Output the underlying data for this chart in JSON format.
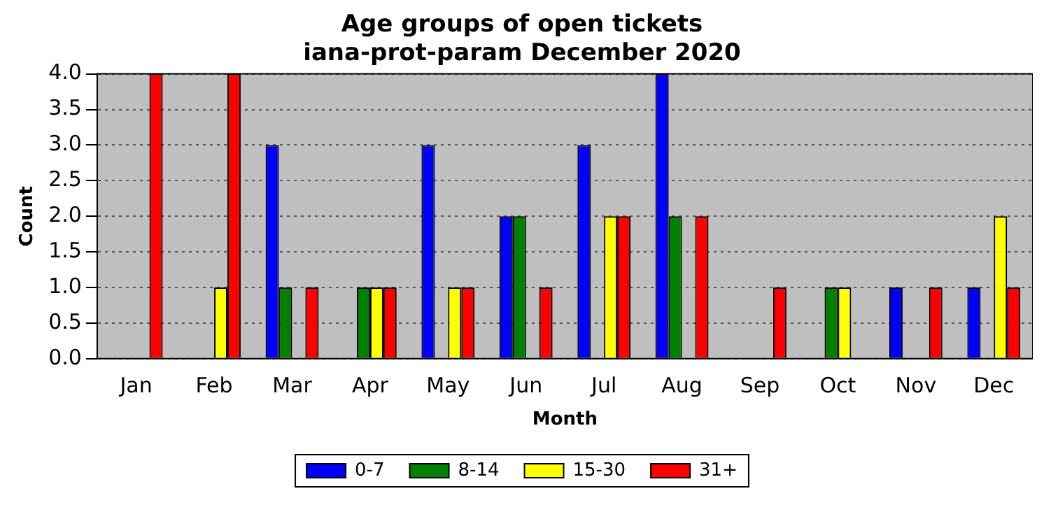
{
  "chart_data": {
    "type": "bar",
    "title": "Age groups of open tickets",
    "subtitle": "iana-prot-param December 2020",
    "xlabel": "Month",
    "ylabel": "Count",
    "categories": [
      "Jan",
      "Feb",
      "Mar",
      "Apr",
      "May",
      "Jun",
      "Jul",
      "Aug",
      "Sep",
      "Oct",
      "Nov",
      "Dec"
    ],
    "series": [
      {
        "name": "0-7",
        "color": "#0000ff",
        "values": [
          0,
          0,
          3,
          0,
          3,
          2,
          3,
          4,
          0,
          0,
          1,
          1
        ]
      },
      {
        "name": "8-14",
        "color": "#008000",
        "values": [
          0,
          0,
          1,
          1,
          0,
          2,
          0,
          2,
          0,
          1,
          0,
          0
        ]
      },
      {
        "name": "15-30",
        "color": "#ffff00",
        "values": [
          0,
          1,
          0,
          1,
          1,
          0,
          2,
          0,
          0,
          1,
          0,
          2
        ]
      },
      {
        "name": "31+",
        "color": "#ff0000",
        "values": [
          4,
          4,
          1,
          1,
          1,
          1,
          2,
          2,
          1,
          0,
          1,
          1
        ]
      }
    ],
    "ylim": [
      0,
      4
    ],
    "yticks": [
      {
        "value": 0,
        "label": "0.0"
      },
      0.5,
      {
        "value": 1,
        "label": "1.0"
      },
      1.5,
      {
        "value": 2,
        "label": "2.0"
      },
      2.5,
      {
        "value": 3,
        "label": "3.0"
      },
      3.5,
      {
        "value": 4,
        "label": "4.0"
      }
    ],
    "grid": "y",
    "legend": "bottom"
  }
}
